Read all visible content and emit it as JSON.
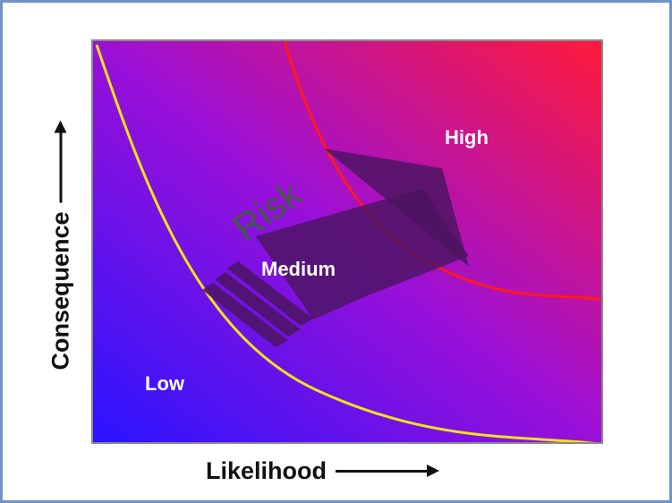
{
  "axes": {
    "x_label": "Likelihood",
    "y_label": "Consequence"
  },
  "zones": {
    "low": "Low",
    "medium": "Medium",
    "high": "High"
  },
  "arrow_label": "Risk",
  "colors": {
    "bottom_left": "#2a14ff",
    "top_right": "#ff1a3a",
    "mid": "#9a10d8",
    "low_curve": "#f2e21a",
    "high_curve": "#ff1a1a",
    "arrow": "#4b1560",
    "risk_text": "#3e5f3e",
    "frame": "#6f93c4"
  }
}
